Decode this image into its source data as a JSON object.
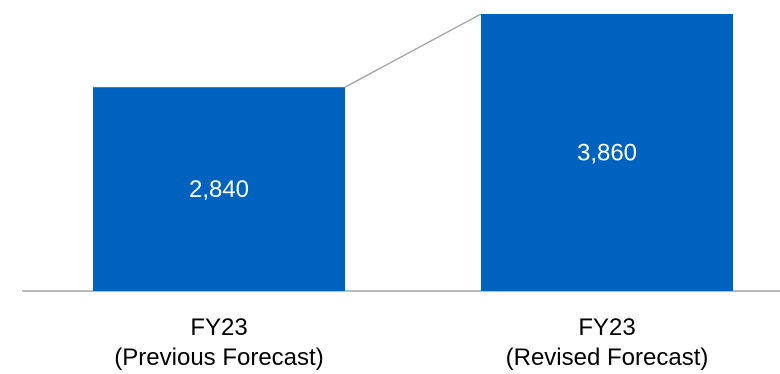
{
  "chart_data": {
    "type": "bar",
    "categories": [
      [
        "FY23",
        "(Previous Forecast)"
      ],
      [
        "FY23",
        "(Revised Forecast)"
      ]
    ],
    "values": [
      2840,
      3860
    ],
    "value_labels": [
      "2,840",
      "3,860"
    ],
    "title": "",
    "xlabel": "",
    "ylabel": "",
    "ylim": [
      0,
      3860
    ],
    "grid": false,
    "legend": "none",
    "connector_line": true
  },
  "colors": {
    "bar": "#0062BF",
    "connector": "#A6A6A6",
    "baseline": "#A6A6A6"
  }
}
